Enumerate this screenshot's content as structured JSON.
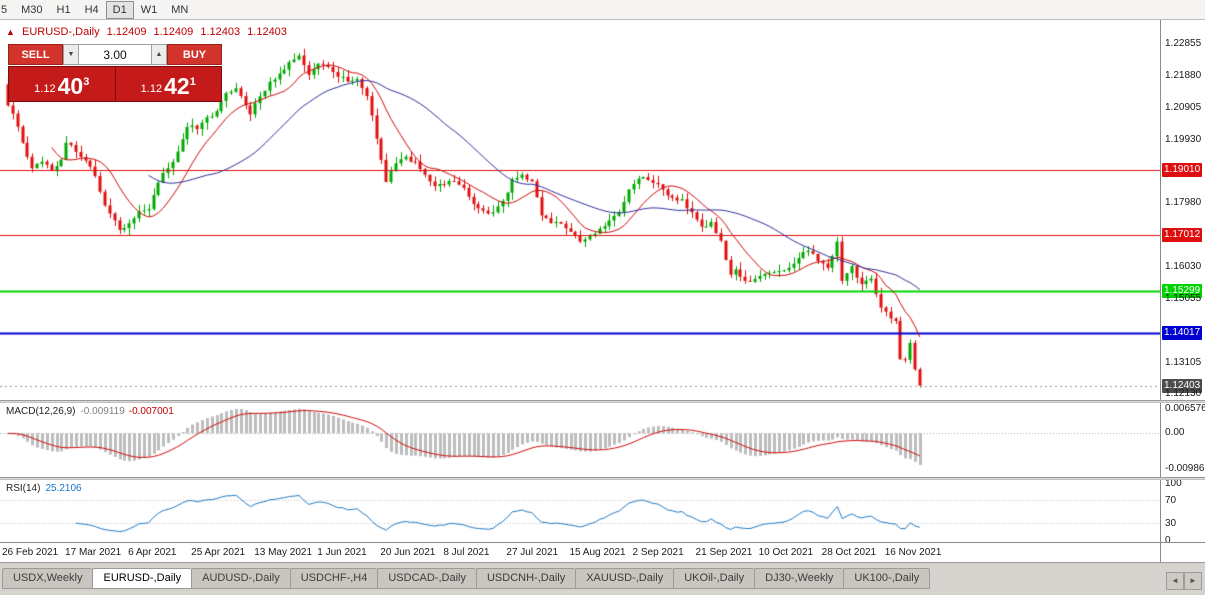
{
  "toolbar": {
    "timeframes": [
      "5",
      "M30",
      "H1",
      "H4",
      "D1",
      "W1",
      "MN"
    ],
    "active": "D1"
  },
  "icons": {
    "collapse_icon": "▲",
    "volume_down_icon": "▼",
    "volume_up_icon": "▲",
    "tab_scroll_left_icon": "◄",
    "tab_scroll_right_icon": "►"
  },
  "trade_panel": {
    "sell_label": "SELL",
    "buy_label": "BUY",
    "volume": "3.00",
    "sell_price": {
      "prefix": "1.12",
      "big": "40",
      "sup": "3"
    },
    "buy_price": {
      "prefix": "1.12",
      "big": "42",
      "sup": "1"
    }
  },
  "chart_data": {
    "type": "candlestick",
    "header": {
      "symbol_period": "EURUSD-,Daily",
      "open": "1.12409",
      "high": "1.12409",
      "low": "1.12403",
      "close": "1.12403"
    },
    "y_axis": {
      "ticks": [
        "1.22855",
        "1.21880",
        "1.20905",
        "1.19930",
        "1.17980",
        "1.16030",
        "1.15055",
        "1.13105",
        "1.12130"
      ]
    },
    "x_axis_dates": [
      "26 Feb 2021",
      "17 Mar 2021",
      "6 Apr 2021",
      "25 Apr 2021",
      "13 May 2021",
      "1 Jun 2021",
      "20 Jun 2021",
      "8 Jul 2021",
      "27 Jul 2021",
      "15 Aug 2021",
      "2 Sep 2021",
      "21 Sep 2021",
      "10 Oct 2021",
      "28 Oct 2021",
      "16 Nov 2021"
    ],
    "levels": [
      {
        "label": "1.19010",
        "price": "1.19010",
        "color": "#dd0f0f",
        "width": 1,
        "role": "resistance"
      },
      {
        "label": "1.17012",
        "price": "1.17012",
        "color": "#dd0f0f",
        "width": 1,
        "role": "resistance"
      },
      {
        "label": "1.15299",
        "price": "1.15299",
        "color": "#00d400",
        "width": 2,
        "role": "support"
      },
      {
        "label": "1.14017",
        "price": "1.14017",
        "color": "#0000d0",
        "width": 2,
        "role": "support"
      }
    ],
    "current_price": {
      "label": "1.12403",
      "value": "1.12403",
      "color": "#4d4d4d"
    },
    "indicators": {
      "macd": {
        "label": "MACD(12,26,9)",
        "value_main": "-0.009119",
        "value_signal": "-0.007001",
        "params": [
          12,
          26,
          9
        ],
        "axis": [
          "0.006576",
          "0.00",
          "-0.009866"
        ]
      },
      "rsi": {
        "label": "RSI(14)",
        "value": "25.2106",
        "period": 14,
        "axis": [
          "100",
          "70",
          "30",
          "0"
        ],
        "levels": [
          70,
          30
        ]
      },
      "ma_fast_period": 10,
      "ma_slow_period": 30
    },
    "candles_total": 189,
    "waypoints": [
      [
        0,
        1.2098
      ],
      [
        1,
        1.2073
      ],
      [
        3,
        1.1984
      ],
      [
        5,
        1.1906
      ],
      [
        7,
        1.1926
      ],
      [
        9,
        1.1899
      ],
      [
        11,
        1.1932
      ],
      [
        12,
        1.1984
      ],
      [
        14,
        1.1956
      ],
      [
        16,
        1.1929
      ],
      [
        18,
        1.1882
      ],
      [
        20,
        1.1792
      ],
      [
        22,
        1.1746
      ],
      [
        23,
        1.1717
      ],
      [
        25,
        1.1737
      ],
      [
        27,
        1.1774
      ],
      [
        29,
        1.1781
      ],
      [
        31,
        1.1862
      ],
      [
        33,
        1.1906
      ],
      [
        35,
        1.1957
      ],
      [
        37,
        1.2032
      ],
      [
        39,
        1.2026
      ],
      [
        41,
        1.2062
      ],
      [
        43,
        1.2081
      ],
      [
        45,
        1.2136
      ],
      [
        47,
        1.2151
      ],
      [
        48,
        1.2127
      ],
      [
        50,
        1.2071
      ],
      [
        52,
        1.2126
      ],
      [
        54,
        1.2171
      ],
      [
        56,
        1.2196
      ],
      [
        58,
        1.2231
      ],
      [
        60,
        1.2251
      ],
      [
        62,
        1.2192
      ],
      [
        64,
        1.2226
      ],
      [
        66,
        1.2216
      ],
      [
        68,
        1.2186
      ],
      [
        70,
        1.2171
      ],
      [
        72,
        1.2179
      ],
      [
        74,
        1.2127
      ],
      [
        76,
        1.1996
      ],
      [
        78,
        1.1864
      ],
      [
        80,
        1.1921
      ],
      [
        82,
        1.1941
      ],
      [
        84,
        1.1926
      ],
      [
        86,
        1.1886
      ],
      [
        88,
        1.1851
      ],
      [
        90,
        1.1856
      ],
      [
        92,
        1.1866
      ],
      [
        94,
        1.1846
      ],
      [
        96,
        1.1796
      ],
      [
        98,
        1.1776
      ],
      [
        100,
        1.1771
      ],
      [
        102,
        1.1806
      ],
      [
        104,
        1.1871
      ],
      [
        106,
        1.1886
      ],
      [
        108,
        1.1866
      ],
      [
        110,
        1.1761
      ],
      [
        112,
        1.1738
      ],
      [
        114,
        1.1736
      ],
      [
        116,
        1.1711
      ],
      [
        118,
        1.1681
      ],
      [
        120,
        1.1698
      ],
      [
        122,
        1.1721
      ],
      [
        124,
        1.1746
      ],
      [
        126,
        1.1771
      ],
      [
        128,
        1.1841
      ],
      [
        130,
        1.1874
      ],
      [
        131,
        1.1879
      ],
      [
        133,
        1.1861
      ],
      [
        135,
        1.1841
      ],
      [
        137,
        1.1816
      ],
      [
        139,
        1.1811
      ],
      [
        141,
        1.1771
      ],
      [
        143,
        1.1727
      ],
      [
        145,
        1.1741
      ],
      [
        147,
        1.1684
      ],
      [
        149,
        1.158
      ],
      [
        150,
        1.1596
      ],
      [
        152,
        1.1561
      ],
      [
        153,
        1.1558
      ],
      [
        155,
        1.1576
      ],
      [
        157,
        1.1586
      ],
      [
        159,
        1.1591
      ],
      [
        161,
        1.1601
      ],
      [
        163,
        1.1631
      ],
      [
        165,
        1.1653
      ],
      [
        167,
        1.1621
      ],
      [
        169,
        1.1601
      ],
      [
        171,
        1.1681
      ],
      [
        172,
        1.1561
      ],
      [
        174,
        1.1606
      ],
      [
        176,
        1.1551
      ],
      [
        178,
        1.1568
      ],
      [
        180,
        1.1479
      ],
      [
        182,
        1.1446
      ],
      [
        183,
        1.1438
      ],
      [
        184,
        1.1321
      ],
      [
        185,
        1.1319
      ],
      [
        186,
        1.1371
      ],
      [
        187,
        1.129
      ],
      [
        188,
        1.12403
      ]
    ]
  },
  "tabs": {
    "items": [
      {
        "label": "USDX,Weekly",
        "active": false
      },
      {
        "label": "EURUSD-,Daily",
        "active": true
      },
      {
        "label": "AUDUSD-,Daily",
        "active": false
      },
      {
        "label": "USDCHF-,H4",
        "active": false
      },
      {
        "label": "USDCAD-,Daily",
        "active": false
      },
      {
        "label": "USDCNH-,Daily",
        "active": false
      },
      {
        "label": "XAUUSD-,Daily",
        "active": false
      },
      {
        "label": "UKOil-,Daily",
        "active": false
      },
      {
        "label": "DJ30-,Weekly",
        "active": false
      },
      {
        "label": "UK100-,Daily",
        "active": false
      }
    ]
  },
  "colors": {
    "header_text": "#c00000",
    "candle_up": "#00a800",
    "candle_down": "#e01010",
    "ma_fast": "#cf0a0a",
    "ma_slow": "#2f2f9e",
    "macd_hist": "#bdbdbd",
    "macd_signal": "#cf0a0a",
    "rsi_line": "#2079c7",
    "level_dotted": "#c0c0c0"
  }
}
